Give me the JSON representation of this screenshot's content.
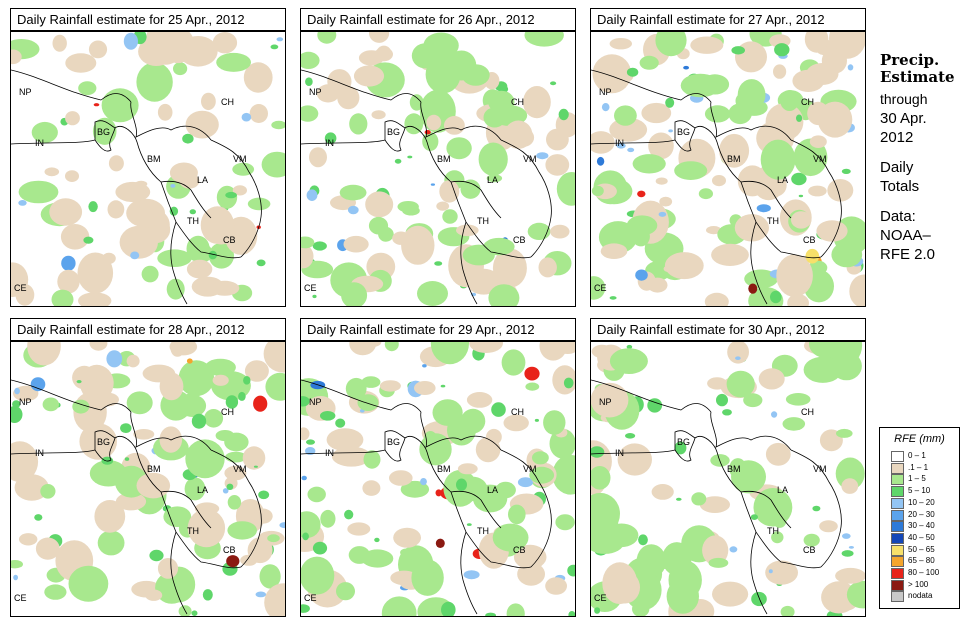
{
  "panels": [
    {
      "title": "Daily Rainfall estimate for  25 Apr., 2012",
      "seed": 11,
      "intensity": 0.35
    },
    {
      "title": "Daily Rainfall estimate for  26 Apr., 2012",
      "seed": 23,
      "intensity": 0.55
    },
    {
      "title": "Daily Rainfall estimate for  27 Apr., 2012",
      "seed": 37,
      "intensity": 0.9
    },
    {
      "title": "Daily Rainfall estimate for  28 Apr., 2012",
      "seed": 41,
      "intensity": 0.75
    },
    {
      "title": "Daily Rainfall estimate for  29 Apr., 2012",
      "seed": 53,
      "intensity": 0.7
    },
    {
      "title": "Daily Rainfall estimate for  30 Apr., 2012",
      "seed": 67,
      "intensity": 0.5
    }
  ],
  "country_labels": [
    "NP",
    "CH",
    "IN",
    "BG",
    "BM",
    "VM",
    "LA",
    "TH",
    "CB",
    "CE"
  ],
  "side": {
    "title_line1": "Precip.",
    "title_line2": "Estimate",
    "through": "through",
    "date_line1": "30 Apr.",
    "date_line2": "2012",
    "daily_line1": "Daily",
    "daily_line2": "Totals",
    "data_line1": "Data:",
    "data_line2": "NOAA–",
    "data_line3": "RFE 2.0"
  },
  "legend": {
    "title": "RFE (mm)",
    "items": [
      {
        "label": "0 – 1",
        "color": "#ffffff"
      },
      {
        "label": ".1 – 1",
        "color": "#e9d7bf"
      },
      {
        "label": "1 – 5",
        "color": "#a8e88e"
      },
      {
        "label": "5 – 10",
        "color": "#5fd66a"
      },
      {
        "label": "10 – 20",
        "color": "#93c5f4"
      },
      {
        "label": "20 – 30",
        "color": "#5ba3ec"
      },
      {
        "label": "30 – 40",
        "color": "#2e7ad8"
      },
      {
        "label": "40 – 50",
        "color": "#1447b8"
      },
      {
        "label": "50 – 65",
        "color": "#f7e06a"
      },
      {
        "label": "65 – 80",
        "color": "#f4a52d"
      },
      {
        "label": "80 – 100",
        "color": "#e8231a"
      },
      {
        "label": "> 100",
        "color": "#8b1a12"
      },
      {
        "label": "nodata",
        "color": "#c8c8c8"
      }
    ]
  }
}
